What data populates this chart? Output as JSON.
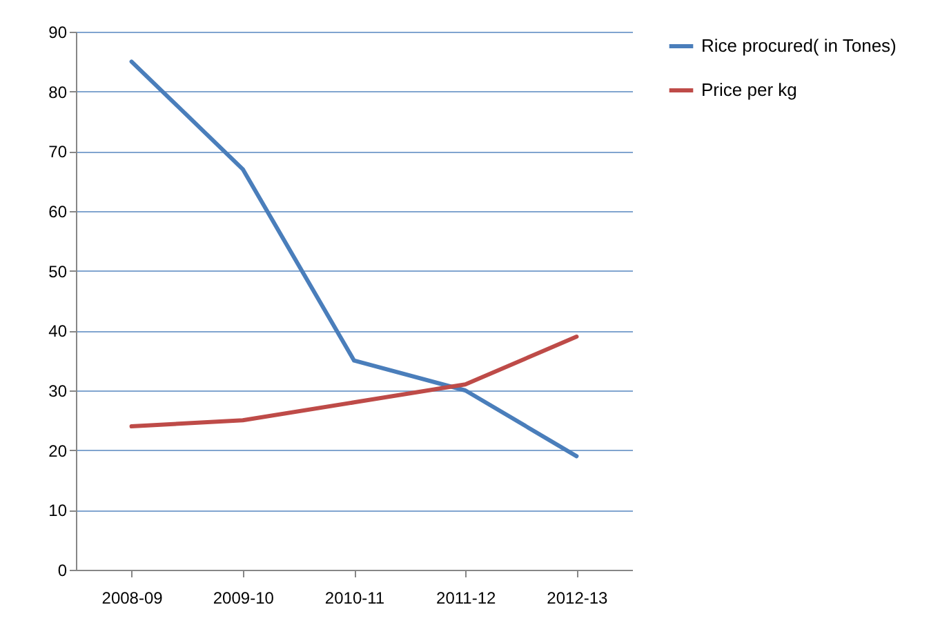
{
  "chart_data": {
    "type": "line",
    "categories": [
      "2008-09",
      "2009-10",
      "2010-11",
      "2011-12",
      "2012-13"
    ],
    "series": [
      {
        "name": "Rice procured( in Tones)",
        "color": "#4a7ebb",
        "values": [
          85,
          67,
          35,
          30,
          19
        ]
      },
      {
        "name": "Price per kg",
        "color": "#be4b48",
        "values": [
          24,
          25,
          28,
          31,
          39
        ]
      }
    ],
    "ylim": [
      0,
      90
    ],
    "yticks": [
      0,
      10,
      20,
      30,
      40,
      50,
      60,
      70,
      80,
      90
    ],
    "grid": "y",
    "legend": "right",
    "line_style": "solid",
    "marker": "none"
  }
}
